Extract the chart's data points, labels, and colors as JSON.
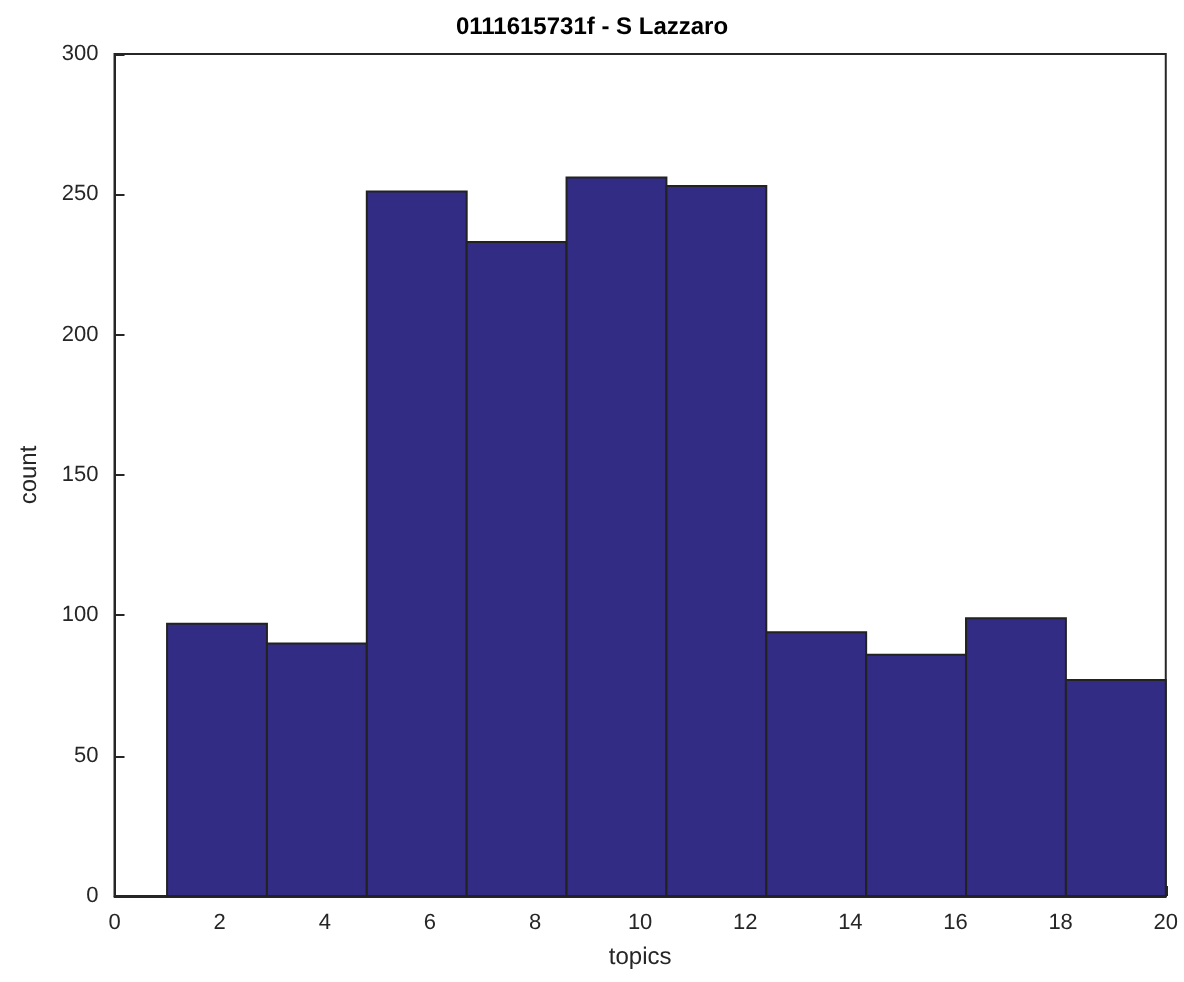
{
  "chart_data": {
    "type": "histogram",
    "title": "0111615731f - S Lazzaro",
    "xlabel": "topics",
    "ylabel": "count",
    "bins": [
      1,
      2.9,
      4.8,
      6.7,
      8.6,
      10.5,
      12.4,
      14.3,
      16.2,
      18.1,
      20
    ],
    "values": [
      97,
      90,
      251,
      233,
      256,
      253,
      94,
      86,
      99,
      77
    ],
    "color": "#332c85",
    "xlim": [
      0,
      20
    ],
    "xticks": [
      0,
      2,
      4,
      6,
      8,
      10,
      12,
      14,
      16,
      18,
      20
    ],
    "ylim": [
      0,
      300
    ],
    "yticks": [
      0,
      50,
      100,
      150,
      200,
      250,
      300
    ],
    "grid": false
  }
}
